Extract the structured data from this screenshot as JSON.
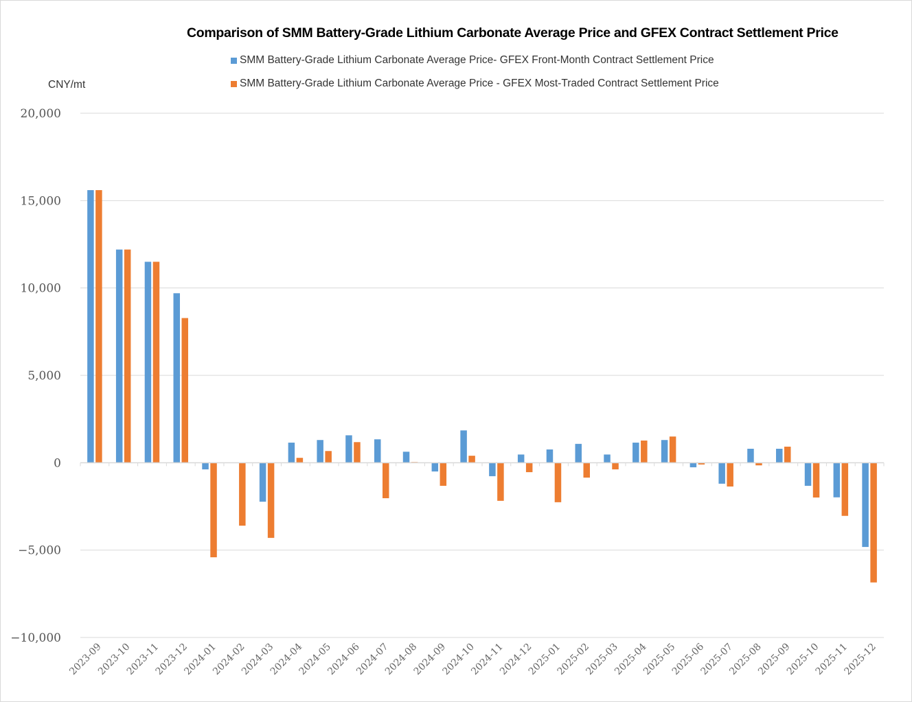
{
  "chart_data": {
    "type": "bar",
    "title": "Comparison of SMM Battery-Grade Lithium Carbonate Average Price and GFEX Contract Settlement Price",
    "ylabel": "CNY/mt",
    "xlabel": "",
    "ylim": [
      -10000,
      20000
    ],
    "yticks": [
      20000,
      15000,
      10000,
      5000,
      0,
      -5000,
      -10000
    ],
    "ytick_labels": [
      "20,000",
      "15,000",
      "10,000",
      "5,000",
      "0",
      "−5,000",
      "−10,000"
    ],
    "grid": true,
    "legend_position": "top",
    "categories": [
      "2023-09",
      "2023-10",
      "2023-11",
      "2023-12",
      "2024-01",
      "2024-02",
      "2024-03",
      "2024-04",
      "2024-05",
      "2024-06",
      "2024-07",
      "2024-08",
      "2024-09",
      "2024-10",
      "2024-11",
      "2024-12",
      "2025-01",
      "2025-02",
      "2025-03",
      "2025-04",
      "2025-05",
      "2025-06",
      "2025-07",
      "2025-08",
      "2025-09",
      "2025-10",
      "2025-11",
      "2025-12"
    ],
    "series": [
      {
        "name": "SMM Battery-Grade Lithium Carbonate Average Price- GFEX Front-Month Contract Settlement Price",
        "color": "#5b9bd5",
        "values": [
          15600,
          12200,
          11500,
          9700,
          -380,
          0,
          -2230,
          1150,
          1300,
          1570,
          1340,
          630,
          -500,
          1850,
          -770,
          470,
          760,
          1080,
          470,
          1150,
          1300,
          -260,
          -1200,
          800,
          800,
          -1320,
          -1980,
          -4820
        ]
      },
      {
        "name": "SMM Battery-Grade Lithium Carbonate Average Price - GFEX Most-Traded Contract Settlement Price",
        "color": "#ed7d31",
        "values": [
          15600,
          12200,
          11500,
          8280,
          -5410,
          -3600,
          -4300,
          280,
          670,
          1180,
          -2030,
          40,
          -1320,
          400,
          -2180,
          -540,
          -2260,
          -850,
          -380,
          1270,
          1500,
          -100,
          -1360,
          -150,
          920,
          -1990,
          -3040,
          -6850
        ]
      }
    ]
  }
}
